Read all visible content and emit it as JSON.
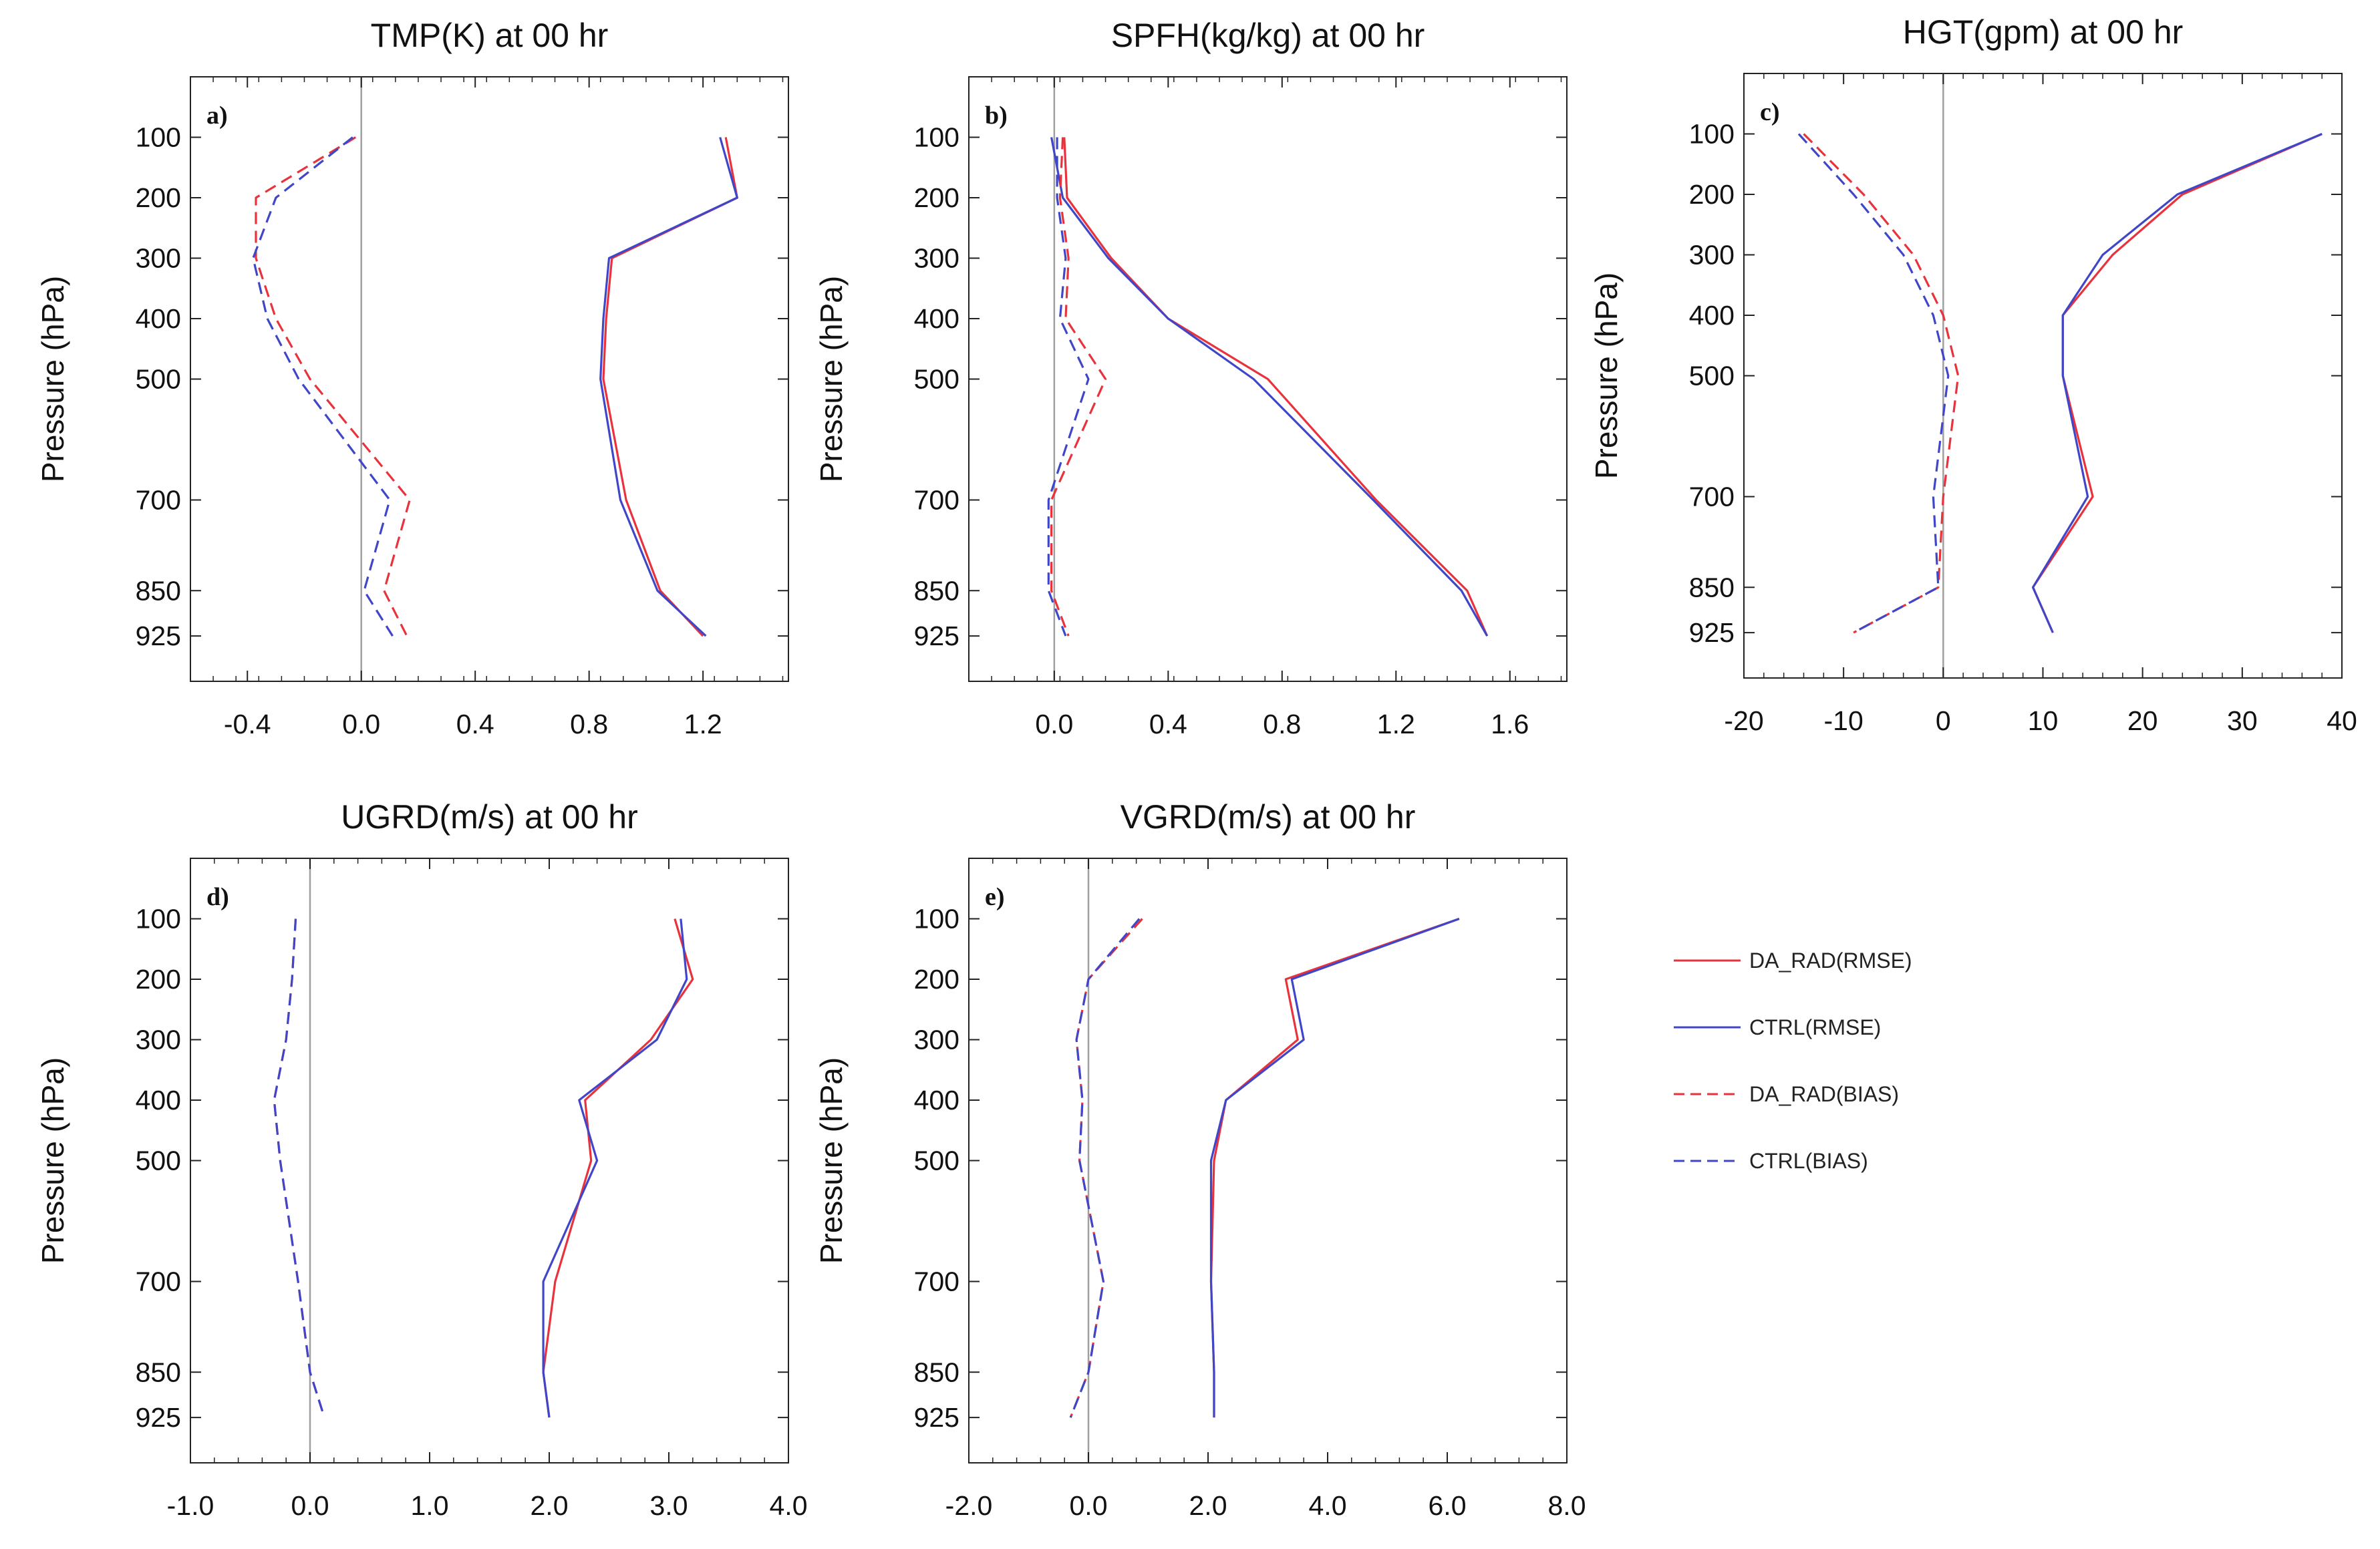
{
  "colors": {
    "da_rad": "#e8323c",
    "ctrl": "#4046c8",
    "zero_line": "#a0a0a0",
    "axis": "#222222"
  },
  "legend": [
    {
      "label": "DA_RAD(RMSE)",
      "color": "#e8323c",
      "dash": false
    },
    {
      "label": "CTRL(RMSE)",
      "color": "#4046c8",
      "dash": false
    },
    {
      "label": "DA_RAD(BIAS)",
      "color": "#e8323c",
      "dash": true
    },
    {
      "label": "CTRL(BIAS)",
      "color": "#4046c8",
      "dash": true
    }
  ],
  "chart_data": [
    {
      "type": "line",
      "panel_label": "a)",
      "title": "TMP(K) at 00 hr",
      "xlabel": "",
      "ylabel": "Pressure (hPa)",
      "xlim": [
        -0.6,
        1.5
      ],
      "ylim": [
        0,
        1000
      ],
      "xticks": [
        -0.4,
        0.0,
        0.4,
        0.8,
        1.2
      ],
      "xtick_labels": [
        "-0.4",
        "0.0",
        "0.4",
        "0.8",
        "1.2"
      ],
      "yticks": [
        100,
        200,
        300,
        400,
        500,
        700,
        850,
        925
      ],
      "pressure": [
        100,
        200,
        300,
        400,
        500,
        700,
        850,
        925
      ],
      "series": [
        {
          "name": "DA_RAD(RMSE)",
          "values": [
            1.28,
            1.32,
            0.88,
            0.86,
            0.85,
            0.93,
            1.05,
            1.2
          ]
        },
        {
          "name": "CTRL(RMSE)",
          "values": [
            1.26,
            1.32,
            0.87,
            0.85,
            0.84,
            0.91,
            1.04,
            1.21
          ]
        },
        {
          "name": "DA_RAD(BIAS)",
          "values": [
            -0.02,
            -0.37,
            -0.37,
            -0.3,
            -0.18,
            0.17,
            0.08,
            0.16
          ]
        },
        {
          "name": "CTRL(BIAS)",
          "values": [
            -0.03,
            -0.3,
            -0.38,
            -0.33,
            -0.22,
            0.1,
            0.01,
            0.11
          ]
        }
      ]
    },
    {
      "type": "line",
      "panel_label": "b)",
      "title": "SPFH(kg/kg) at 00 hr",
      "xlabel": "",
      "ylabel": "Pressure (hPa)",
      "xlim": [
        -0.3,
        1.8
      ],
      "ylim": [
        0,
        1000
      ],
      "xticks": [
        0.0,
        0.4,
        0.8,
        1.2,
        1.6
      ],
      "xtick_labels": [
        "0.0",
        "0.4",
        "0.8",
        "1.2",
        "1.6"
      ],
      "yticks": [
        100,
        200,
        300,
        400,
        500,
        700,
        850,
        925
      ],
      "pressure": [
        100,
        200,
        300,
        400,
        500,
        700,
        850,
        925
      ],
      "series": [
        {
          "name": "DA_RAD(RMSE)",
          "values": [
            0.035,
            0.045,
            0.2,
            0.4,
            0.75,
            1.13,
            1.45,
            1.52
          ]
        },
        {
          "name": "CTRL(RMSE)",
          "values": [
            -0.01,
            0.03,
            0.19,
            0.4,
            0.7,
            1.12,
            1.43,
            1.52
          ]
        },
        {
          "name": "DA_RAD(BIAS)",
          "values": [
            0.03,
            0.02,
            0.05,
            0.04,
            0.18,
            -0.01,
            -0.01,
            0.05
          ]
        },
        {
          "name": "CTRL(BIAS)",
          "values": [
            0.01,
            0.01,
            0.04,
            0.02,
            0.12,
            -0.02,
            -0.02,
            0.04
          ]
        }
      ]
    },
    {
      "type": "line",
      "panel_label": "c)",
      "title": "HGT(gpm) at 00 hr",
      "xlabel": "",
      "ylabel": "Pressure (hPa)",
      "xlim": [
        -20,
        40
      ],
      "ylim": [
        0,
        1000
      ],
      "xticks": [
        -20,
        -10,
        0,
        10,
        20,
        30,
        40
      ],
      "xtick_labels": [
        "-20",
        "-10",
        "0",
        "10",
        "20",
        "30",
        "40"
      ],
      "yticks": [
        100,
        200,
        300,
        400,
        500,
        700,
        850,
        925
      ],
      "pressure": [
        100,
        200,
        300,
        400,
        500,
        700,
        850,
        925
      ],
      "series": [
        {
          "name": "DA_RAD(RMSE)",
          "values": [
            38,
            24,
            17,
            12,
            12,
            15,
            9,
            11
          ]
        },
        {
          "name": "CTRL(RMSE)",
          "values": [
            38,
            23.5,
            16,
            12,
            12,
            14.5,
            9,
            11
          ]
        },
        {
          "name": "DA_RAD(BIAS)",
          "values": [
            -14,
            -8,
            -3,
            0,
            1.5,
            0,
            -0.5,
            -9
          ]
        },
        {
          "name": "CTRL(BIAS)",
          "values": [
            -14.5,
            -9,
            -4,
            -1,
            0.5,
            -1,
            -0.5,
            -9
          ]
        }
      ]
    },
    {
      "type": "line",
      "panel_label": "d)",
      "title": "UGRD(m/s) at 00 hr",
      "xlabel": "",
      "ylabel": "Pressure (hPa)",
      "xlim": [
        -1.0,
        4.0
      ],
      "ylim": [
        0,
        1000
      ],
      "xticks": [
        -1.0,
        0.0,
        1.0,
        2.0,
        3.0,
        4.0
      ],
      "xtick_labels": [
        "-1.0",
        "0.0",
        "1.0",
        "2.0",
        "3.0",
        "4.0"
      ],
      "yticks": [
        100,
        200,
        300,
        400,
        500,
        700,
        850,
        925
      ],
      "pressure": [
        100,
        200,
        300,
        400,
        500,
        700,
        850,
        925
      ],
      "series": [
        {
          "name": "DA_RAD(RMSE)",
          "values": [
            3.05,
            3.2,
            2.85,
            2.3,
            2.35,
            2.05,
            1.95,
            2.0
          ]
        },
        {
          "name": "CTRL(RMSE)",
          "values": [
            3.1,
            3.15,
            2.9,
            2.25,
            2.4,
            1.95,
            1.95,
            2.0
          ]
        },
        {
          "name": "DA_RAD(BIAS)",
          "values": [
            -0.12,
            -0.15,
            -0.2,
            -0.3,
            -0.25,
            -0.1,
            0.0,
            0.12
          ]
        },
        {
          "name": "CTRL(BIAS)",
          "values": [
            -0.12,
            -0.15,
            -0.2,
            -0.3,
            -0.25,
            -0.1,
            0.0,
            0.12
          ]
        }
      ]
    },
    {
      "type": "line",
      "panel_label": "e)",
      "title": "VGRD(m/s) at 00 hr",
      "xlabel": "",
      "ylabel": "Pressure (hPa)",
      "xlim": [
        -2.0,
        8.0
      ],
      "ylim": [
        0,
        1000
      ],
      "xticks": [
        -2.0,
        0.0,
        2.0,
        4.0,
        6.0,
        8.0
      ],
      "xtick_labels": [
        "-2.0",
        "0.0",
        "2.0",
        "4.0",
        "6.0",
        "8.0"
      ],
      "yticks": [
        100,
        200,
        300,
        400,
        500,
        700,
        850,
        925
      ],
      "pressure": [
        100,
        200,
        300,
        400,
        500,
        700,
        850,
        925
      ],
      "series": [
        {
          "name": "DA_RAD(RMSE)",
          "values": [
            6.2,
            3.3,
            3.5,
            2.3,
            2.1,
            2.05,
            2.1,
            2.1
          ]
        },
        {
          "name": "CTRL(RMSE)",
          "values": [
            6.2,
            3.4,
            3.6,
            2.3,
            2.05,
            2.05,
            2.1,
            2.1
          ]
        },
        {
          "name": "DA_RAD(BIAS)",
          "values": [
            0.9,
            0.0,
            -0.2,
            -0.1,
            -0.15,
            0.25,
            0.0,
            -0.3
          ]
        },
        {
          "name": "CTRL(BIAS)",
          "values": [
            0.85,
            0.0,
            -0.2,
            -0.1,
            -0.15,
            0.25,
            0.0,
            -0.3
          ]
        }
      ]
    }
  ]
}
